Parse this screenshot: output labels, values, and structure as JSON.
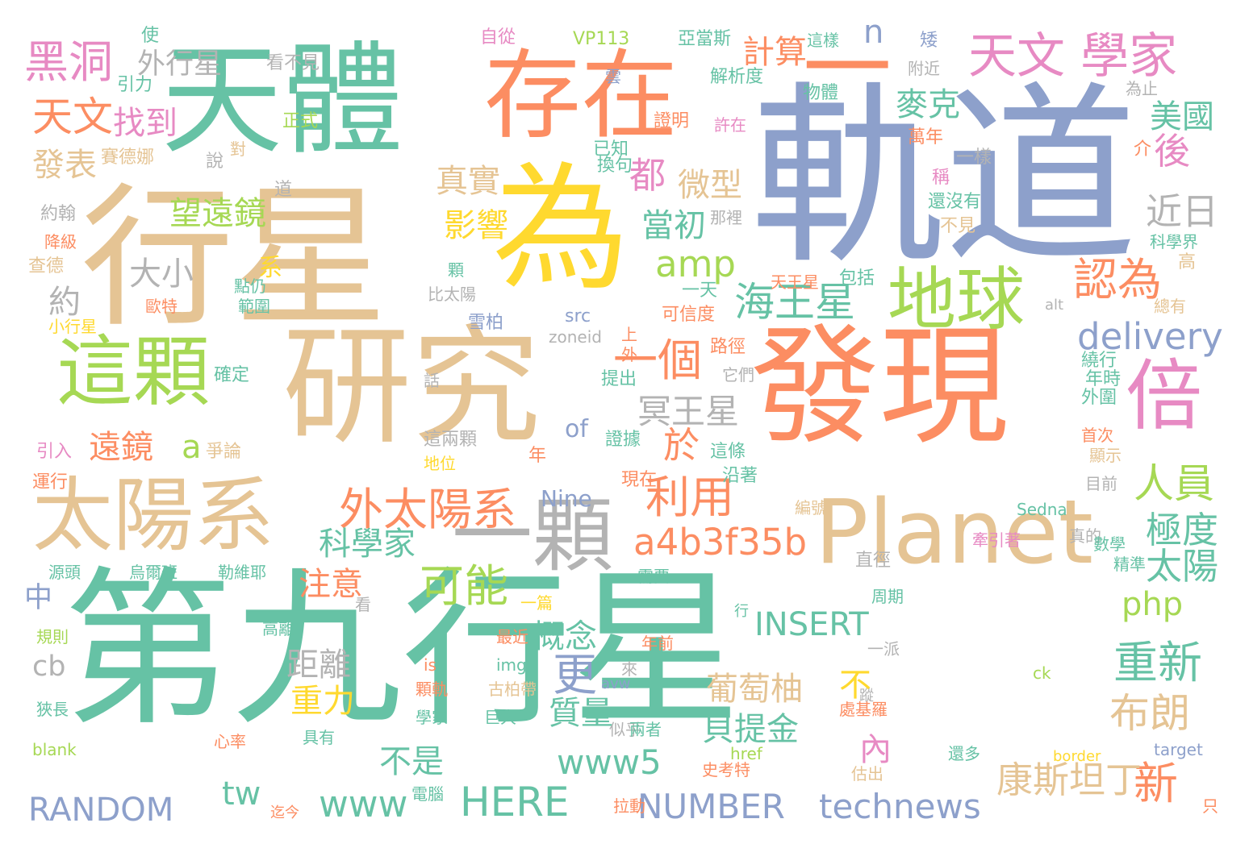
{
  "palette": {
    "teal": "#66c2a5",
    "orange": "#fc8d62",
    "blue": "#8da0cb",
    "pink": "#e78ac3",
    "green": "#a6d854",
    "yellow": "#ffd92f",
    "tan": "#e5c494",
    "gray": "#b3b3b3"
  },
  "words": [
    {
      "text": "第九行星",
      "color": "teal"
    },
    {
      "text": "行星",
      "color": "tan"
    },
    {
      "text": "軌道",
      "color": "blue"
    },
    {
      "text": "研究",
      "color": "tan"
    },
    {
      "text": "發現",
      "color": "orange"
    },
    {
      "text": "為",
      "color": "yellow"
    },
    {
      "text": "天體",
      "color": "teal"
    },
    {
      "text": "存在",
      "color": "orange"
    },
    {
      "text": "一",
      "color": "orange"
    },
    {
      "text": "太陽系",
      "color": "tan"
    },
    {
      "text": "這顆",
      "color": "green"
    },
    {
      "text": "一顆",
      "color": "gray"
    },
    {
      "text": "Planet",
      "color": "tan"
    },
    {
      "text": "倍",
      "color": "pink"
    },
    {
      "text": "地球",
      "color": "green"
    },
    {
      "text": "天文 學家",
      "color": "pink"
    },
    {
      "text": "黑洞",
      "color": "pink"
    },
    {
      "text": "天文",
      "color": "orange"
    },
    {
      "text": "找到",
      "color": "pink"
    },
    {
      "text": "外太陽系",
      "color": "orange"
    },
    {
      "text": "海王星",
      "color": "teal"
    },
    {
      "text": "一個",
      "color": "orange"
    },
    {
      "text": "利用",
      "color": "orange"
    },
    {
      "text": "可能",
      "color": "green"
    },
    {
      "text": "a4b3f35b",
      "color": "orange"
    },
    {
      "text": "amp",
      "color": "green"
    },
    {
      "text": "delivery",
      "color": "blue"
    },
    {
      "text": "都",
      "color": "pink"
    },
    {
      "text": "人員",
      "color": "green"
    },
    {
      "text": "認為",
      "color": "orange"
    },
    {
      "text": "麥克",
      "color": "teal"
    },
    {
      "text": "計算",
      "color": "orange"
    },
    {
      "text": "美國",
      "color": "teal"
    },
    {
      "text": "後",
      "color": "pink"
    },
    {
      "text": "近日",
      "color": "gray"
    },
    {
      "text": "微型",
      "color": "tan"
    },
    {
      "text": "當初",
      "color": "teal"
    },
    {
      "text": "影響",
      "color": "yellow"
    },
    {
      "text": "真實",
      "color": "tan"
    },
    {
      "text": "望遠鏡",
      "color": "green"
    },
    {
      "text": "大小",
      "color": "gray"
    },
    {
      "text": "約",
      "color": "gray"
    },
    {
      "text": "外行星",
      "color": "gray"
    },
    {
      "text": "發表",
      "color": "tan"
    },
    {
      "text": "遠鏡",
      "color": "orange"
    },
    {
      "text": "a",
      "color": "green"
    },
    {
      "text": "冥王星",
      "color": "gray"
    },
    {
      "text": "於",
      "color": "orange"
    },
    {
      "text": "科學家",
      "color": "teal"
    },
    {
      "text": "注意",
      "color": "orange"
    },
    {
      "text": "概念",
      "color": "teal"
    },
    {
      "text": "更",
      "color": "blue"
    },
    {
      "text": "php",
      "color": "green"
    },
    {
      "text": "INSERT",
      "color": "teal"
    },
    {
      "text": "重新",
      "color": "teal"
    },
    {
      "text": "極度",
      "color": "teal"
    },
    {
      "text": "太陽",
      "color": "teal"
    },
    {
      "text": "布朗",
      "color": "tan"
    },
    {
      "text": "新",
      "color": "orange"
    },
    {
      "text": "康斯坦丁",
      "color": "tan"
    },
    {
      "text": "technews",
      "color": "blue"
    },
    {
      "text": "NUMBER",
      "color": "blue"
    },
    {
      "text": "HERE",
      "color": "teal"
    },
    {
      "text": "www",
      "color": "teal"
    },
    {
      "text": "RANDOM",
      "color": "blue"
    },
    {
      "text": "tw",
      "color": "teal"
    },
    {
      "text": "www5",
      "color": "teal"
    },
    {
      "text": "不是",
      "color": "teal"
    },
    {
      "text": "質量",
      "color": "teal"
    },
    {
      "text": "距離",
      "color": "gray"
    },
    {
      "text": "重力",
      "color": "yellow"
    },
    {
      "text": "cb",
      "color": "gray"
    },
    {
      "text": "中",
      "color": "blue"
    },
    {
      "text": "葡萄柚",
      "color": "tan"
    },
    {
      "text": "貝提金",
      "color": "teal"
    },
    {
      "text": "內",
      "color": "pink"
    },
    {
      "text": "不",
      "color": "yellow"
    },
    {
      "text": "n",
      "color": "blue"
    },
    {
      "text": "of",
      "color": "blue"
    },
    {
      "text": "Nine",
      "color": "blue"
    },
    {
      "text": "Sedna",
      "color": "teal"
    },
    {
      "text": "VP113",
      "color": "green"
    },
    {
      "text": "亞當斯",
      "color": "teal"
    },
    {
      "text": "自從",
      "color": "pink"
    },
    {
      "text": "使",
      "color": "teal"
    },
    {
      "text": "引力",
      "color": "teal"
    },
    {
      "text": "看不見",
      "color": "gray"
    },
    {
      "text": "正式",
      "color": "green"
    },
    {
      "text": "賽德娜",
      "color": "tan"
    },
    {
      "text": "說",
      "color": "gray"
    },
    {
      "text": "對",
      "color": "tan"
    },
    {
      "text": "道",
      "color": "gray"
    },
    {
      "text": "約翰",
      "color": "gray"
    },
    {
      "text": "降級",
      "color": "orange"
    },
    {
      "text": "查德",
      "color": "tan"
    },
    {
      "text": "系",
      "color": "yellow"
    },
    {
      "text": "點仍",
      "color": "teal"
    },
    {
      "text": "範圍",
      "color": "teal"
    },
    {
      "text": "歐特",
      "color": "orange"
    },
    {
      "text": "小行星",
      "color": "yellow"
    },
    {
      "text": "雪柏",
      "color": "blue"
    },
    {
      "text": "解析度",
      "color": "teal"
    },
    {
      "text": "物體",
      "color": "teal"
    },
    {
      "text": "這樣",
      "color": "teal"
    },
    {
      "text": "附近",
      "color": "gray"
    },
    {
      "text": "矮",
      "color": "blue"
    },
    {
      "text": "為止",
      "color": "gray"
    },
    {
      "text": "雲",
      "color": "blue"
    },
    {
      "text": "證明",
      "color": "orange"
    },
    {
      "text": "許在",
      "color": "pink"
    },
    {
      "text": "已知",
      "color": "teal"
    },
    {
      "text": "換句",
      "color": "teal"
    },
    {
      "text": "萬年",
      "color": "orange"
    },
    {
      "text": "一樣",
      "color": "gray"
    },
    {
      "text": "介",
      "color": "orange"
    },
    {
      "text": "稱",
      "color": "pink"
    },
    {
      "text": "還沒有",
      "color": "teal"
    },
    {
      "text": "不見",
      "color": "tan"
    },
    {
      "text": "科學界",
      "color": "teal"
    },
    {
      "text": "高",
      "color": "tan"
    },
    {
      "text": "那裡",
      "color": "gray"
    },
    {
      "text": "天王星",
      "color": "orange"
    },
    {
      "text": "包括",
      "color": "teal"
    },
    {
      "text": "一天",
      "color": "teal"
    },
    {
      "text": "可信度",
      "color": "orange"
    },
    {
      "text": "alt",
      "color": "gray"
    },
    {
      "text": "總有",
      "color": "tan"
    },
    {
      "text": "src",
      "color": "blue"
    },
    {
      "text": "zoneid",
      "color": "gray"
    },
    {
      "text": "路徑",
      "color": "orange"
    },
    {
      "text": "它們",
      "color": "gray"
    },
    {
      "text": "上",
      "color": "orange"
    },
    {
      "text": "外",
      "color": "orange"
    },
    {
      "text": "提出",
      "color": "teal"
    },
    {
      "text": "繞行",
      "color": "teal"
    },
    {
      "text": "年時",
      "color": "teal"
    },
    {
      "text": "外圍",
      "color": "teal"
    },
    {
      "text": "確定",
      "color": "teal"
    },
    {
      "text": "話",
      "color": "gray"
    },
    {
      "text": "比太陽",
      "color": "gray"
    },
    {
      "text": "顆",
      "color": "teal"
    },
    {
      "text": "證據",
      "color": "teal"
    },
    {
      "text": "這條",
      "color": "teal"
    },
    {
      "text": "沿著",
      "color": "teal"
    },
    {
      "text": "首次",
      "color": "orange"
    },
    {
      "text": "顯示",
      "color": "tan"
    },
    {
      "text": "目前",
      "color": "gray"
    },
    {
      "text": "真的",
      "color": "gray"
    },
    {
      "text": "這兩顆",
      "color": "gray"
    },
    {
      "text": "地位",
      "color": "yellow"
    },
    {
      "text": "爭論",
      "color": "tan"
    },
    {
      "text": "引入",
      "color": "pink"
    },
    {
      "text": "運行",
      "color": "orange"
    },
    {
      "text": "年",
      "color": "orange"
    },
    {
      "text": "現在",
      "color": "orange"
    },
    {
      "text": "牽引著",
      "color": "pink"
    },
    {
      "text": "編號",
      "color": "tan"
    },
    {
      "text": "數學",
      "color": "teal"
    },
    {
      "text": "精準",
      "color": "teal"
    },
    {
      "text": "直徑",
      "color": "gray"
    },
    {
      "text": "需要",
      "color": "teal"
    },
    {
      "text": "源頭",
      "color": "teal"
    },
    {
      "text": "烏爾班",
      "color": "teal"
    },
    {
      "text": "勒維耶",
      "color": "teal"
    },
    {
      "text": "看",
      "color": "gray"
    },
    {
      "text": "一篇",
      "color": "yellow"
    },
    {
      "text": "周期",
      "color": "teal"
    },
    {
      "text": "高離",
      "color": "teal"
    },
    {
      "text": "行",
      "color": "teal"
    },
    {
      "text": "最近",
      "color": "orange"
    },
    {
      "text": "年前",
      "color": "orange"
    },
    {
      "text": "一派",
      "color": "gray"
    },
    {
      "text": "規則",
      "color": "green"
    },
    {
      "text": "is",
      "color": "orange"
    },
    {
      "text": "img",
      "color": "teal"
    },
    {
      "text": "來",
      "color": "gray"
    },
    {
      "text": "ck",
      "color": "green"
    },
    {
      "text": "蹤",
      "color": "gray"
    },
    {
      "text": "顆軌",
      "color": "orange"
    },
    {
      "text": "古柏帶",
      "color": "tan"
    },
    {
      "text": "avw",
      "color": "blue"
    },
    {
      "text": "處基羅",
      "color": "orange"
    },
    {
      "text": "狹長",
      "color": "teal"
    },
    {
      "text": "學家",
      "color": "teal"
    },
    {
      "text": "巨大",
      "color": "teal"
    },
    {
      "text": "似乎",
      "color": "gray"
    },
    {
      "text": "兩者",
      "color": "teal"
    },
    {
      "text": "心率",
      "color": "orange"
    },
    {
      "text": "具有",
      "color": "teal"
    },
    {
      "text": "blank",
      "color": "green"
    },
    {
      "text": "史考特",
      "color": "orange"
    },
    {
      "text": "href",
      "color": "green"
    },
    {
      "text": "還多",
      "color": "teal"
    },
    {
      "text": "border",
      "color": "yellow"
    },
    {
      "text": "target",
      "color": "blue"
    },
    {
      "text": "估出",
      "color": "tan"
    },
    {
      "text": "迄今",
      "color": "orange"
    },
    {
      "text": "電腦",
      "color": "teal"
    },
    {
      "text": "拉動",
      "color": "orange"
    },
    {
      "text": "只",
      "color": "orange"
    }
  ]
}
